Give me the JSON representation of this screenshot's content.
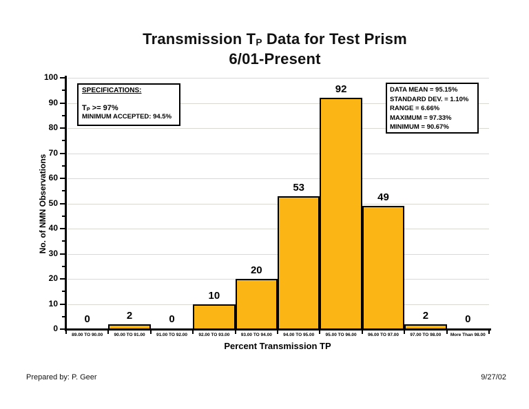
{
  "title": {
    "part1": "Transmission T",
    "subscript": "P",
    "part2": " Data for Test Prism",
    "line2": "6/01-Present"
  },
  "spec_box": {
    "heading": "SPECIFICATIONS:",
    "tp_part1": "T",
    "tp_sub": "P",
    "tp_part2": " >= 97%",
    "minimum": "MINIMUM ACCEPTED: 94.5%"
  },
  "stats_box": {
    "lines": [
      "DATA MEAN = 95.15%",
      "STANDARD DEV. = 1.10%",
      "RANGE = 6.66%",
      "MAXIMUM = 97.33%",
      "MINIMUM = 90.67%"
    ]
  },
  "footer": {
    "prepared_by": "Prepared by: P. Geer",
    "date": "9/27/02"
  },
  "chart_data": {
    "type": "bar",
    "title": "Transmission TP Data for Test Prism 6/01-Present",
    "categories": [
      "89.00 TO 90.00",
      "90.00 TO 91.00",
      "91.00 TO 92.00",
      "92.00 TO 93.00",
      "93.00 TO 94.00",
      "94.00 TO 95.00",
      "95.00 TO 96.00",
      "96.00 TO 97.00",
      "97.00 TO 98.00",
      "More Than 98.00"
    ],
    "values": [
      0,
      2,
      0,
      10,
      20,
      53,
      92,
      49,
      2,
      0
    ],
    "xlabel": "Percent Transmission TP",
    "ylabel": "No. of NMN Observations",
    "ylim": [
      0,
      100
    ],
    "ytick_interval": 10,
    "ytick_minor_interval": 5,
    "grid": true,
    "legend": "none",
    "bar_color": "#FBB615",
    "bar_border_color": "#000000"
  }
}
